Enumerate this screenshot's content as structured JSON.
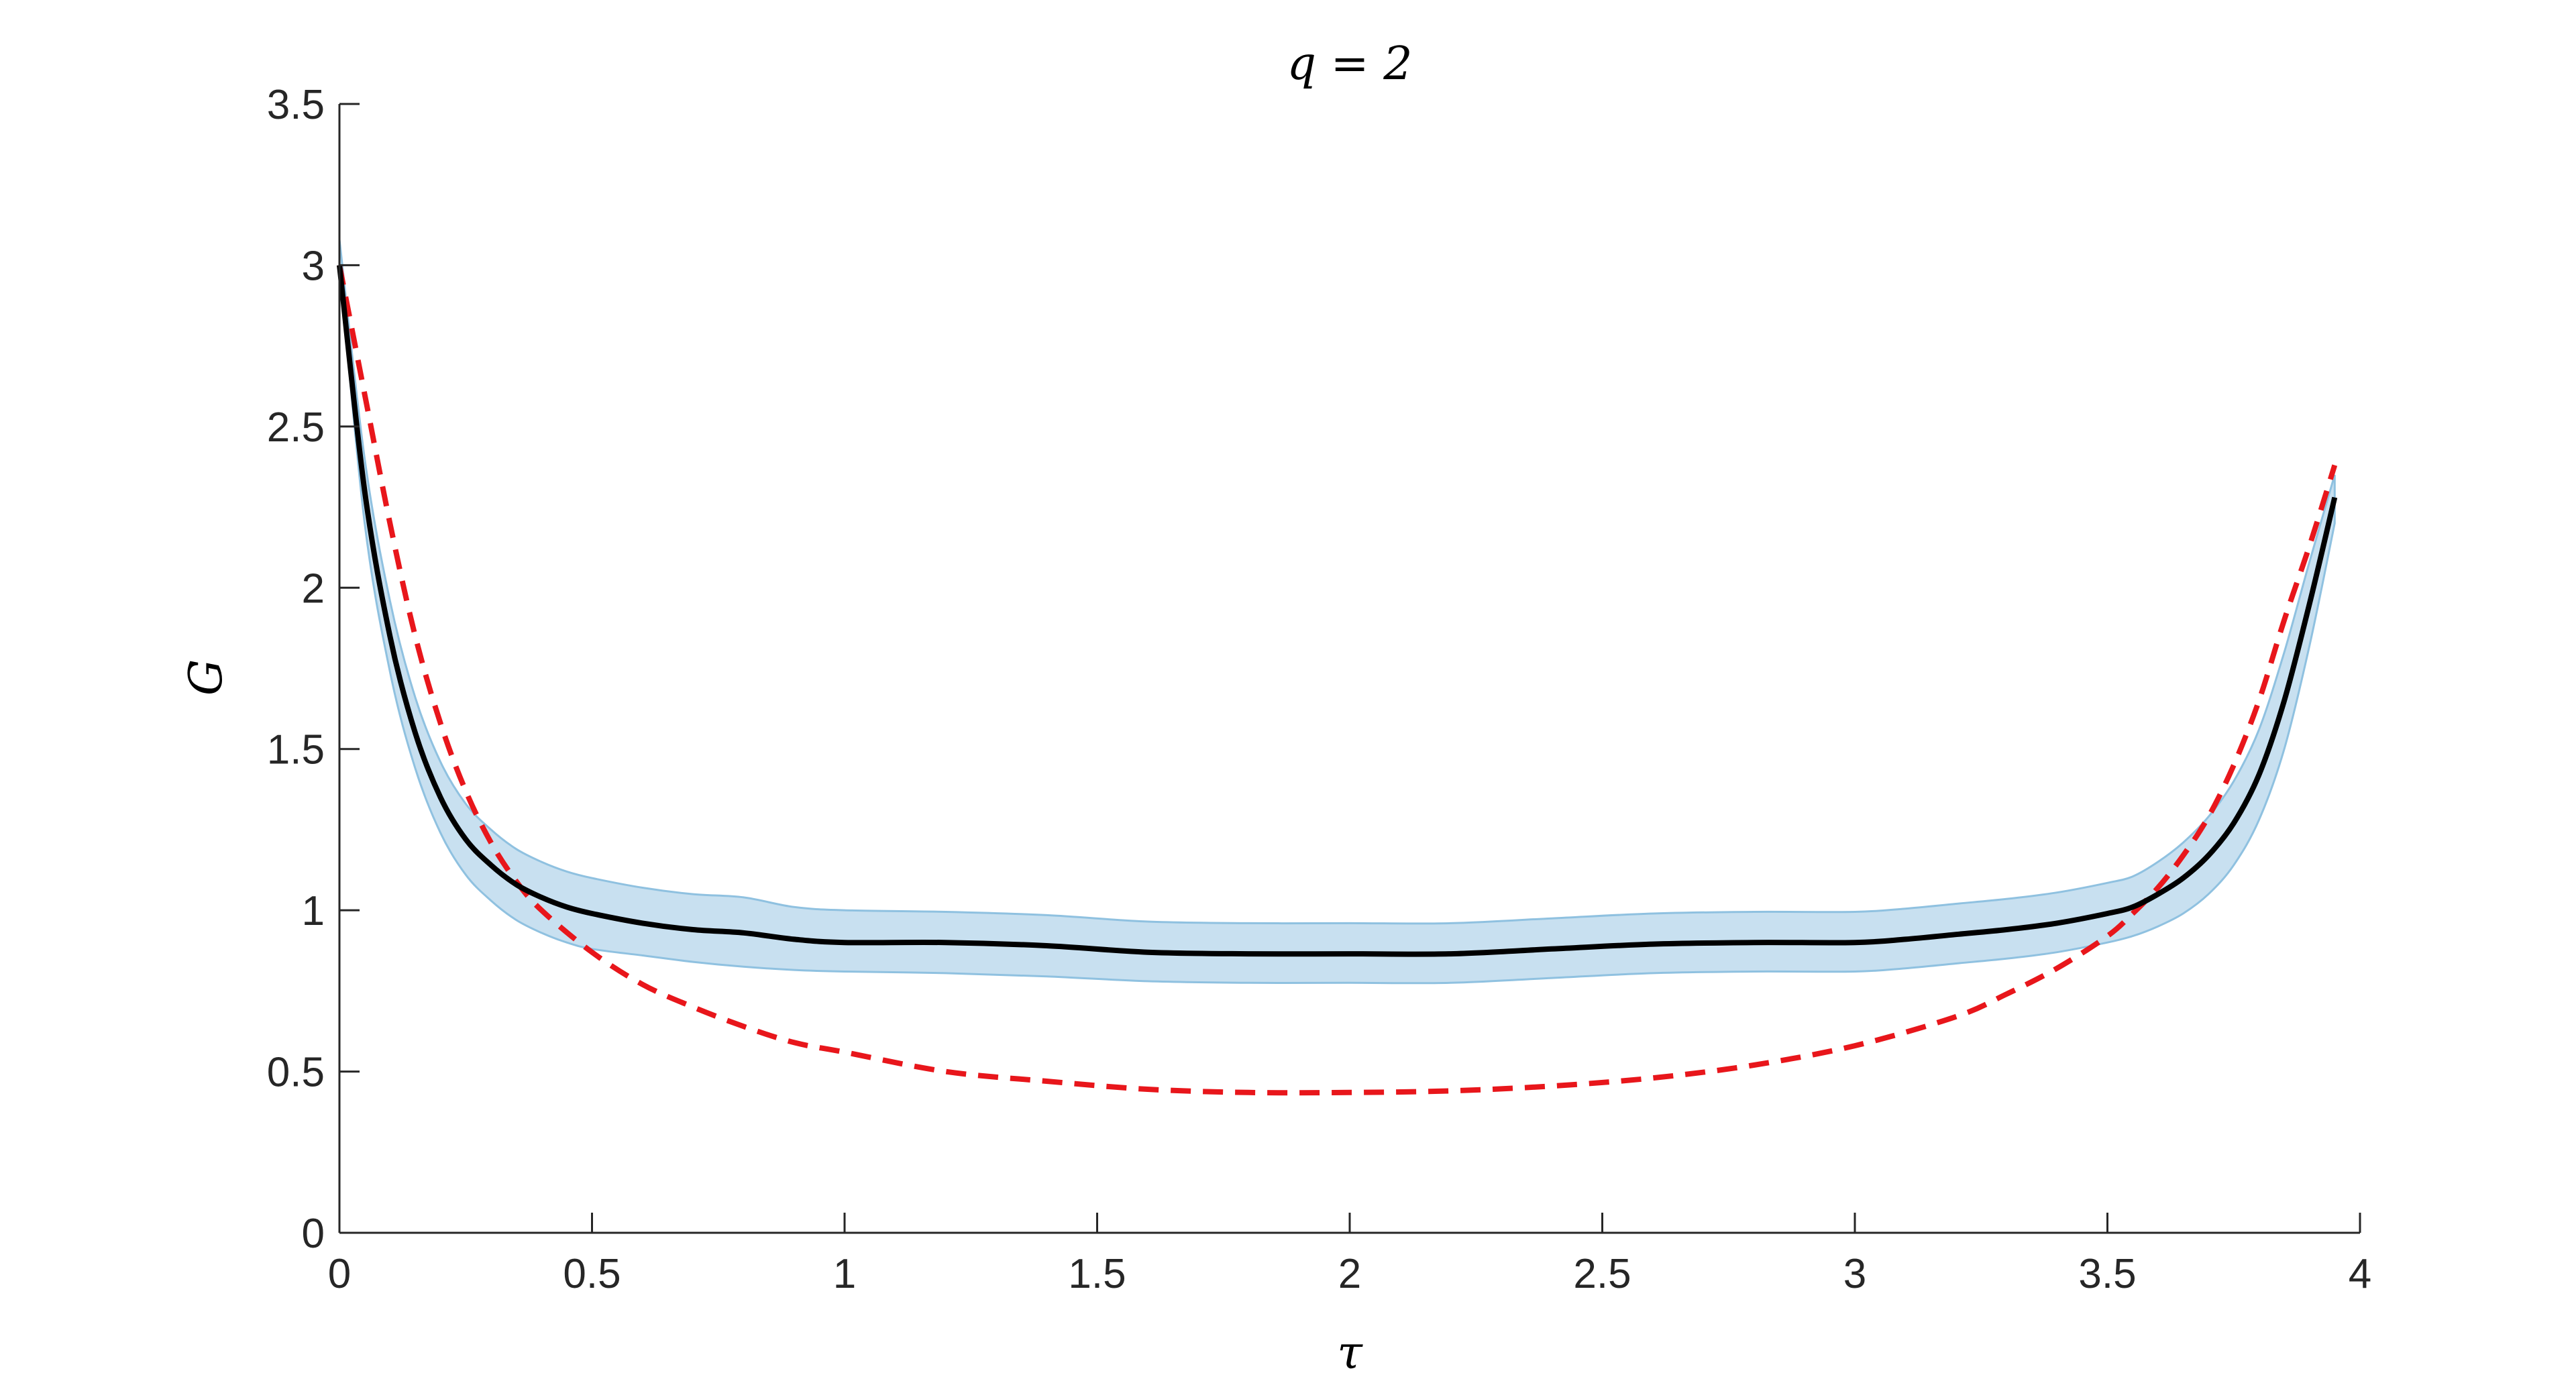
{
  "chart_data": {
    "type": "line",
    "title": "q = 2",
    "xlabel": "τ",
    "ylabel": "G",
    "xlim": [
      0,
      4
    ],
    "ylim": [
      0,
      3.5
    ],
    "xticks": [
      "0",
      "0.5",
      "1",
      "1.5",
      "2",
      "2.5",
      "3",
      "3.5",
      "4"
    ],
    "yticks": [
      "0",
      "0.5",
      "1",
      "1.5",
      "2",
      "2.5",
      "3",
      "3.5"
    ],
    "grid": false,
    "legend": "none",
    "colors": {
      "band": "#c8e0f0",
      "band_edge": "#8fc1e0",
      "mean": "#000000",
      "fit": "#e8161b",
      "axis": "#262626"
    },
    "series": [
      {
        "style": "solid",
        "x": [
          0.0,
          0.05,
          0.1,
          0.15,
          0.2,
          0.25,
          0.3,
          0.35,
          0.4,
          0.45,
          0.5,
          0.6,
          0.7,
          0.8,
          0.9,
          1.0,
          1.2,
          1.4,
          1.6,
          1.8,
          2.0,
          2.2,
          2.4,
          2.6,
          2.8,
          3.0,
          3.1,
          3.2,
          3.3,
          3.4,
          3.5,
          3.55,
          3.6,
          3.65,
          3.7,
          3.75,
          3.8,
          3.85,
          3.9,
          3.95
        ],
        "y": [
          3.0,
          2.3,
          1.85,
          1.55,
          1.35,
          1.22,
          1.14,
          1.08,
          1.04,
          1.01,
          0.99,
          0.96,
          0.94,
          0.93,
          0.91,
          0.9,
          0.9,
          0.89,
          0.87,
          0.865,
          0.865,
          0.865,
          0.88,
          0.895,
          0.9,
          0.9,
          0.91,
          0.925,
          0.94,
          0.96,
          0.99,
          1.01,
          1.05,
          1.1,
          1.17,
          1.27,
          1.42,
          1.65,
          1.95,
          2.28
        ],
        "band_lower": [
          3.0,
          2.2,
          1.74,
          1.44,
          1.24,
          1.11,
          1.03,
          0.97,
          0.93,
          0.9,
          0.88,
          0.86,
          0.84,
          0.825,
          0.815,
          0.81,
          0.805,
          0.795,
          0.78,
          0.775,
          0.775,
          0.775,
          0.79,
          0.805,
          0.81,
          0.81,
          0.82,
          0.835,
          0.85,
          0.87,
          0.9,
          0.92,
          0.95,
          0.99,
          1.05,
          1.14,
          1.28,
          1.5,
          1.82,
          2.2
        ],
        "band_upper": [
          3.08,
          2.4,
          1.96,
          1.66,
          1.46,
          1.33,
          1.25,
          1.19,
          1.15,
          1.12,
          1.1,
          1.07,
          1.05,
          1.04,
          1.01,
          1.0,
          0.995,
          0.985,
          0.965,
          0.96,
          0.96,
          0.96,
          0.975,
          0.99,
          0.995,
          0.995,
          1.005,
          1.02,
          1.035,
          1.055,
          1.085,
          1.105,
          1.15,
          1.21,
          1.29,
          1.4,
          1.56,
          1.8,
          2.08,
          2.35
        ]
      },
      {
        "style": "dashed",
        "x": [
          0.0,
          0.05,
          0.1,
          0.15,
          0.2,
          0.25,
          0.3,
          0.35,
          0.4,
          0.5,
          0.6,
          0.7,
          0.8,
          0.9,
          1.0,
          1.2,
          1.4,
          1.6,
          1.8,
          2.0,
          2.2,
          2.4,
          2.6,
          2.8,
          3.0,
          3.2,
          3.3,
          3.4,
          3.5,
          3.55,
          3.6,
          3.65,
          3.7,
          3.75,
          3.8,
          3.85,
          3.9,
          3.95
        ],
        "y": [
          3.0,
          2.6,
          2.2,
          1.85,
          1.58,
          1.37,
          1.21,
          1.09,
          1.0,
          0.87,
          0.77,
          0.7,
          0.64,
          0.59,
          0.56,
          0.5,
          0.47,
          0.445,
          0.435,
          0.435,
          0.44,
          0.455,
          0.48,
          0.52,
          0.58,
          0.67,
          0.74,
          0.82,
          0.92,
          0.99,
          1.07,
          1.17,
          1.29,
          1.45,
          1.65,
          1.9,
          2.13,
          2.38
        ]
      }
    ]
  }
}
